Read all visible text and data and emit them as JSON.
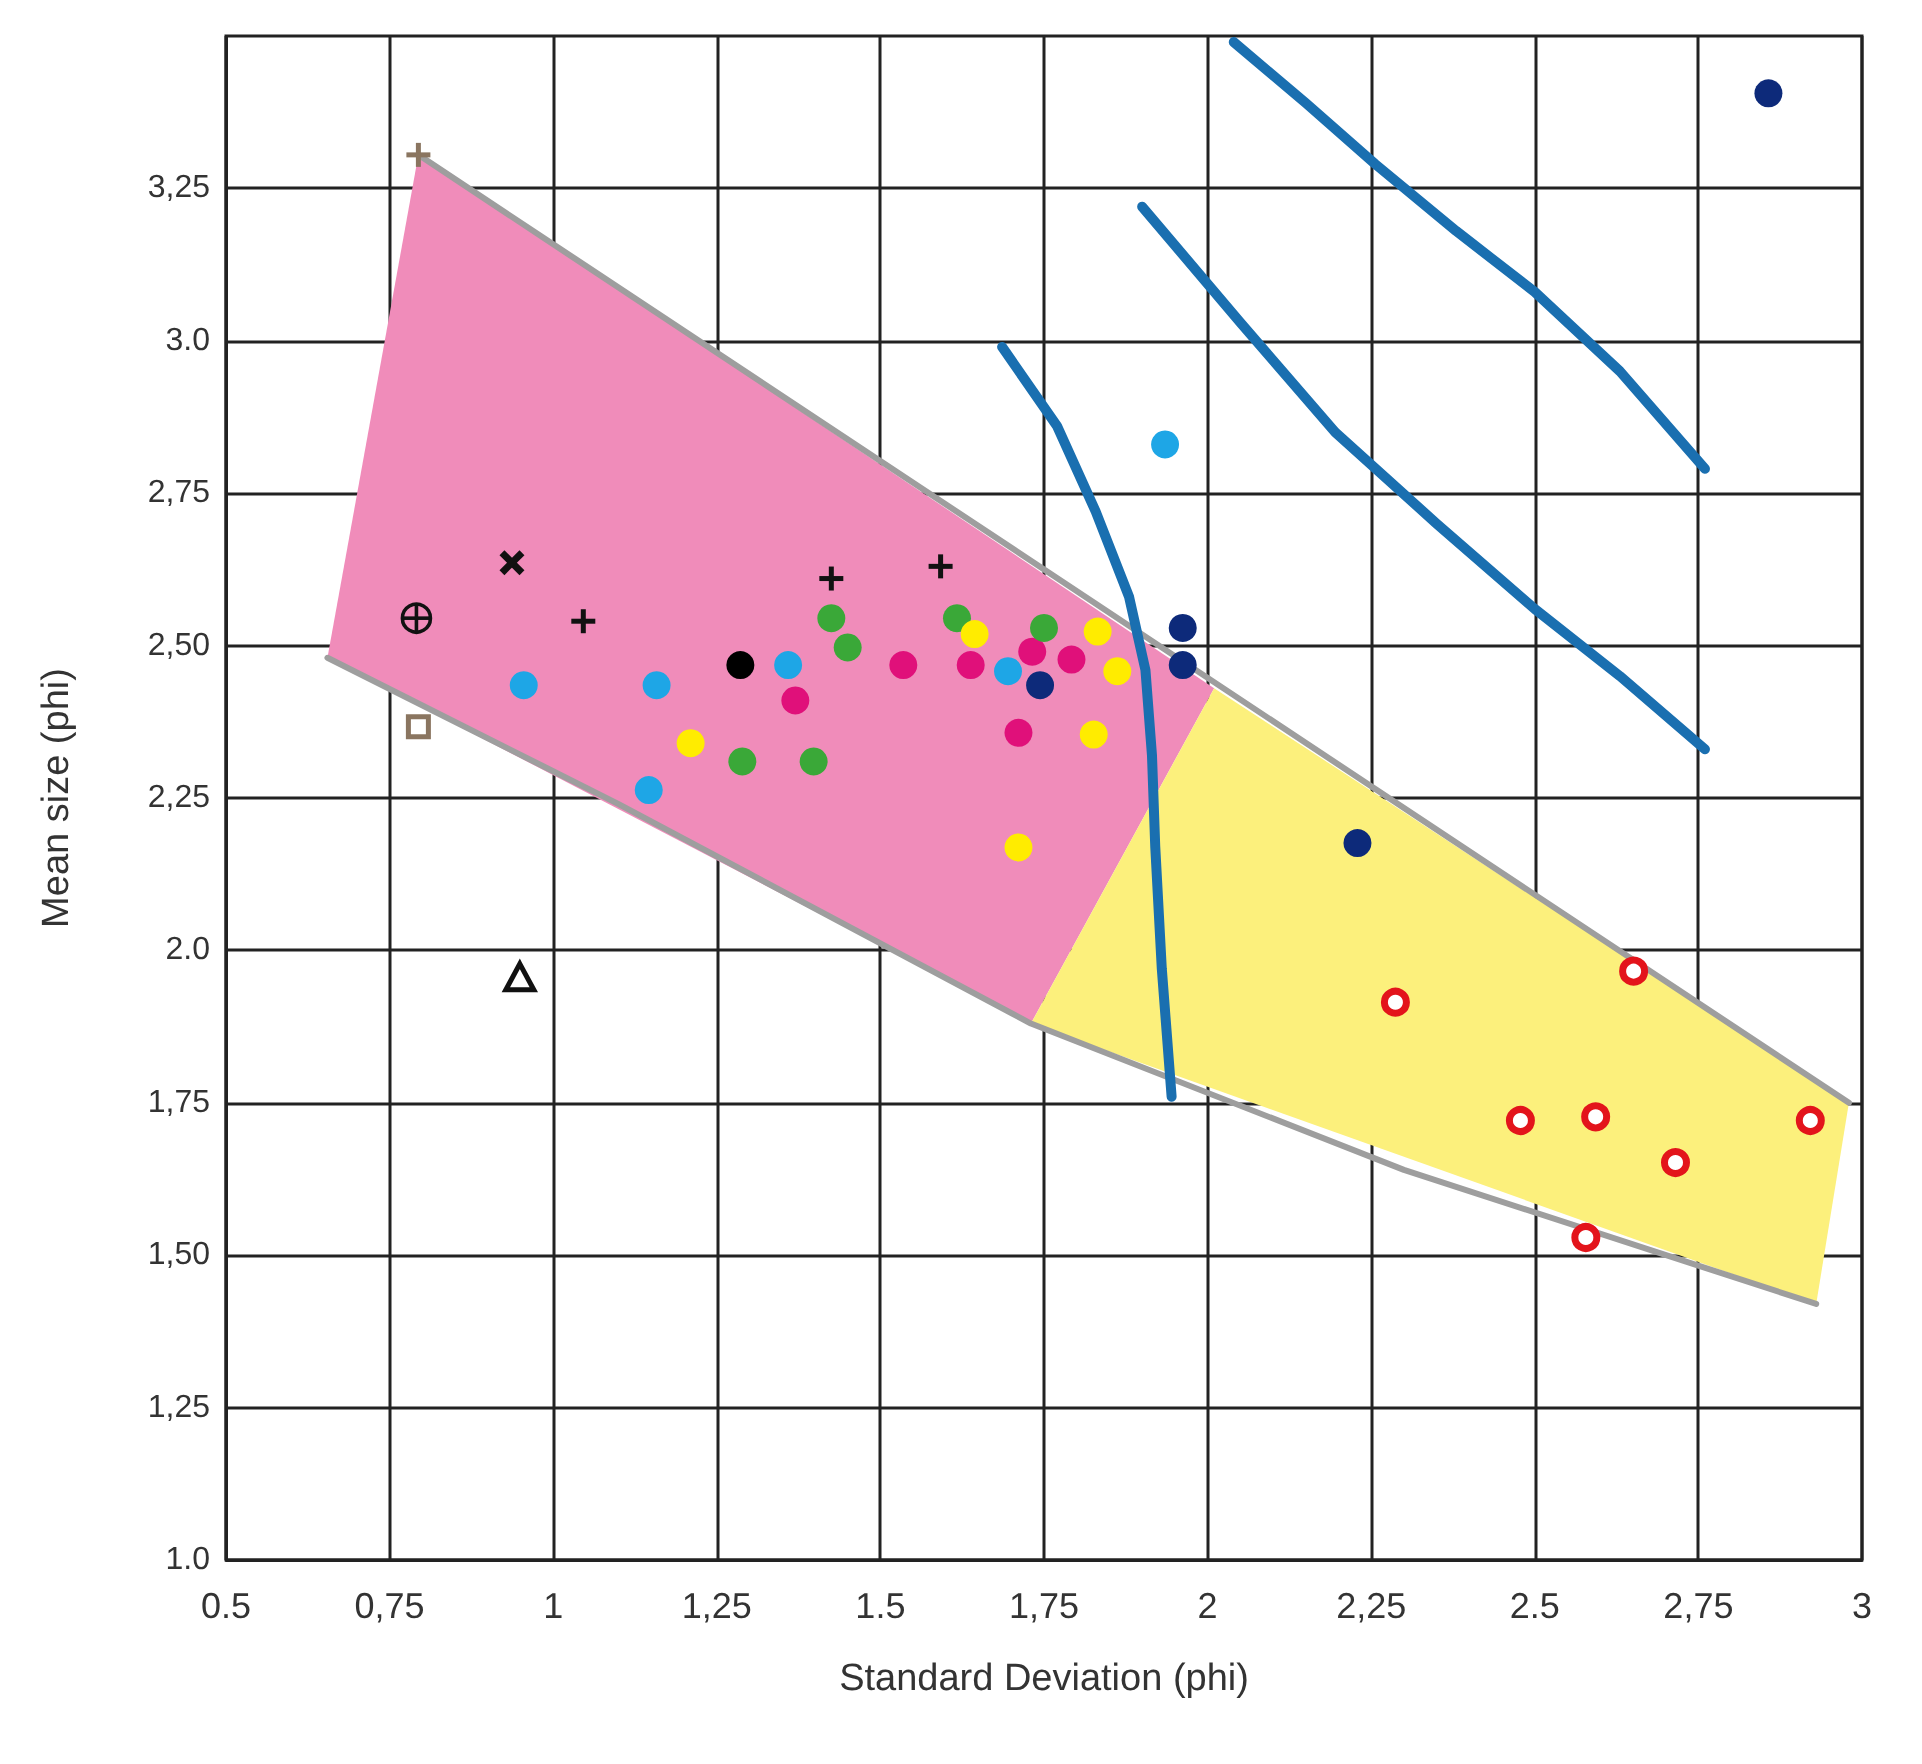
{
  "chart_data": {
    "type": "scatter",
    "xlabel": "Standard Deviation (phi)",
    "ylabel": "Mean size (phi)",
    "xlim": [
      0.5,
      3
    ],
    "ylim": [
      1,
      3.5
    ],
    "xticks": [
      {
        "value": 0.5,
        "label": "0.5"
      },
      {
        "value": 0.75,
        "label": "0,75"
      },
      1,
      {
        "value": 1.25,
        "label": "1,25"
      },
      {
        "value": 1.5,
        "label": "1.5"
      },
      {
        "value": 1.75,
        "label": "1,75"
      },
      2,
      {
        "value": 2.25,
        "label": "2,25"
      },
      {
        "value": 2.5,
        "label": "2.5"
      },
      {
        "value": 2.75,
        "label": "2,75"
      },
      3
    ],
    "yticks": [
      {
        "value": 1,
        "label": "1.0"
      },
      {
        "value": 1.25,
        "label": "1,25"
      },
      {
        "value": 1.5,
        "label": "1,50"
      },
      {
        "value": 1.75,
        "label": "1,75"
      },
      {
        "value": 2,
        "label": "2.0"
      },
      {
        "value": 2.25,
        "label": "2,25"
      },
      {
        "value": 2.5,
        "label": "2,50"
      },
      {
        "value": 2.75,
        "label": "2,75"
      },
      {
        "value": 3,
        "label": "3.0"
      },
      {
        "value": 3.25,
        "label": "3,25"
      }
    ],
    "grid": true,
    "series": [
      {
        "type": "area",
        "color": "#f08cba",
        "x": [
          0.794,
          0.655,
          1.73,
          2.01
        ],
        "values": [
          3.305,
          2.48,
          1.88,
          2.43
        ]
      },
      {
        "type": "area",
        "color": "#fcf07c",
        "x": [
          1.73,
          2.93,
          2.98,
          2.01
        ],
        "values": [
          1.88,
          1.42,
          1.75,
          2.43
        ]
      },
      {
        "type": "line",
        "color": "#9e9e9e",
        "x": [
          0.794,
          2.98
        ],
        "values": [
          3.305,
          1.75
        ]
      },
      {
        "type": "line",
        "color": "#9e9e9e",
        "x": [
          0.655,
          1.1,
          1.73,
          2.3,
          2.93
        ],
        "values": [
          2.48,
          2.24,
          1.88,
          1.64,
          1.42
        ]
      },
      {
        "type": "line",
        "color": "#1a6fb0",
        "x": [
          1.686,
          1.77,
          1.829,
          1.88,
          1.905,
          1.915,
          1.92,
          1.93,
          1.945
        ],
        "values": [
          2.99,
          2.86,
          2.72,
          2.58,
          2.46,
          2.32,
          2.17,
          1.97,
          1.76
        ]
      },
      {
        "type": "line",
        "color": "#1a6fb0",
        "x": [
          1.9,
          2.05,
          2.195,
          2.35,
          2.5,
          2.63,
          2.76
        ],
        "values": [
          3.22,
          3.03,
          2.85,
          2.7,
          2.56,
          2.45,
          2.33
        ]
      },
      {
        "type": "line",
        "color": "#1a6fb0",
        "x": [
          2.04,
          2.15,
          2.256,
          2.38,
          2.5,
          2.63,
          2.76
        ],
        "values": [
          3.49,
          3.39,
          3.29,
          3.18,
          3.08,
          2.95,
          2.79
        ]
      },
      {
        "marker": "cross",
        "color": "#8a7560",
        "x": [
          0.794
        ],
        "values": [
          3.305
        ]
      },
      {
        "marker": "x",
        "color": "#111111",
        "x": [
          0.937
        ],
        "values": [
          2.636
        ]
      },
      {
        "marker": "circle-cross",
        "color": "#111111",
        "x": [
          0.791
        ],
        "values": [
          2.545
        ]
      },
      {
        "marker": "square",
        "color": "#8a7560",
        "x": [
          0.794
        ],
        "values": [
          2.37
        ]
      },
      {
        "marker": "triangle",
        "color": "#111111",
        "x": [
          0.949
        ],
        "values": [
          1.955
        ]
      },
      {
        "marker": "cross",
        "color": "#111111",
        "x": [
          1.046,
          1.425,
          1.592
        ],
        "values": [
          2.54,
          2.61,
          2.63
        ]
      },
      {
        "color": "#1ea6e6",
        "x": [
          0.955,
          1.158,
          1.146,
          1.359,
          1.695,
          1.935
        ],
        "values": [
          2.435,
          2.435,
          2.263,
          2.468,
          2.458,
          2.83
        ]
      },
      {
        "color": "#000000",
        "x": [
          1.286
        ],
        "values": [
          2.468
        ]
      },
      {
        "color": "#e0107a",
        "x": [
          1.37,
          1.535,
          1.638,
          1.732,
          1.792,
          1.711
        ],
        "values": [
          2.41,
          2.468,
          2.468,
          2.49,
          2.477,
          2.357
        ]
      },
      {
        "color": "#3aa838",
        "x": [
          1.425,
          1.45,
          1.289,
          1.398,
          1.617,
          1.75
        ],
        "values": [
          2.545,
          2.497,
          2.31,
          2.31,
          2.545,
          2.529
        ]
      },
      {
        "color": "#ffec00",
        "x": [
          1.21,
          1.644,
          1.832,
          1.862,
          1.826,
          1.711
        ],
        "values": [
          2.34,
          2.519,
          2.523,
          2.458,
          2.354,
          2.169
        ]
      },
      {
        "color": "#0d2a7a",
        "x": [
          1.744,
          1.962,
          1.962,
          2.229,
          2.857
        ],
        "values": [
          2.435,
          2.529,
          2.468,
          2.176,
          3.406
        ]
      },
      {
        "marker": "circle",
        "color": "#e3141b",
        "x": [
          2.287,
          2.478,
          2.593,
          2.651,
          2.715,
          2.921,
          2.578
        ],
        "values": [
          1.915,
          1.721,
          1.727,
          1.966,
          1.652,
          1.721,
          1.529
        ]
      }
    ]
  }
}
